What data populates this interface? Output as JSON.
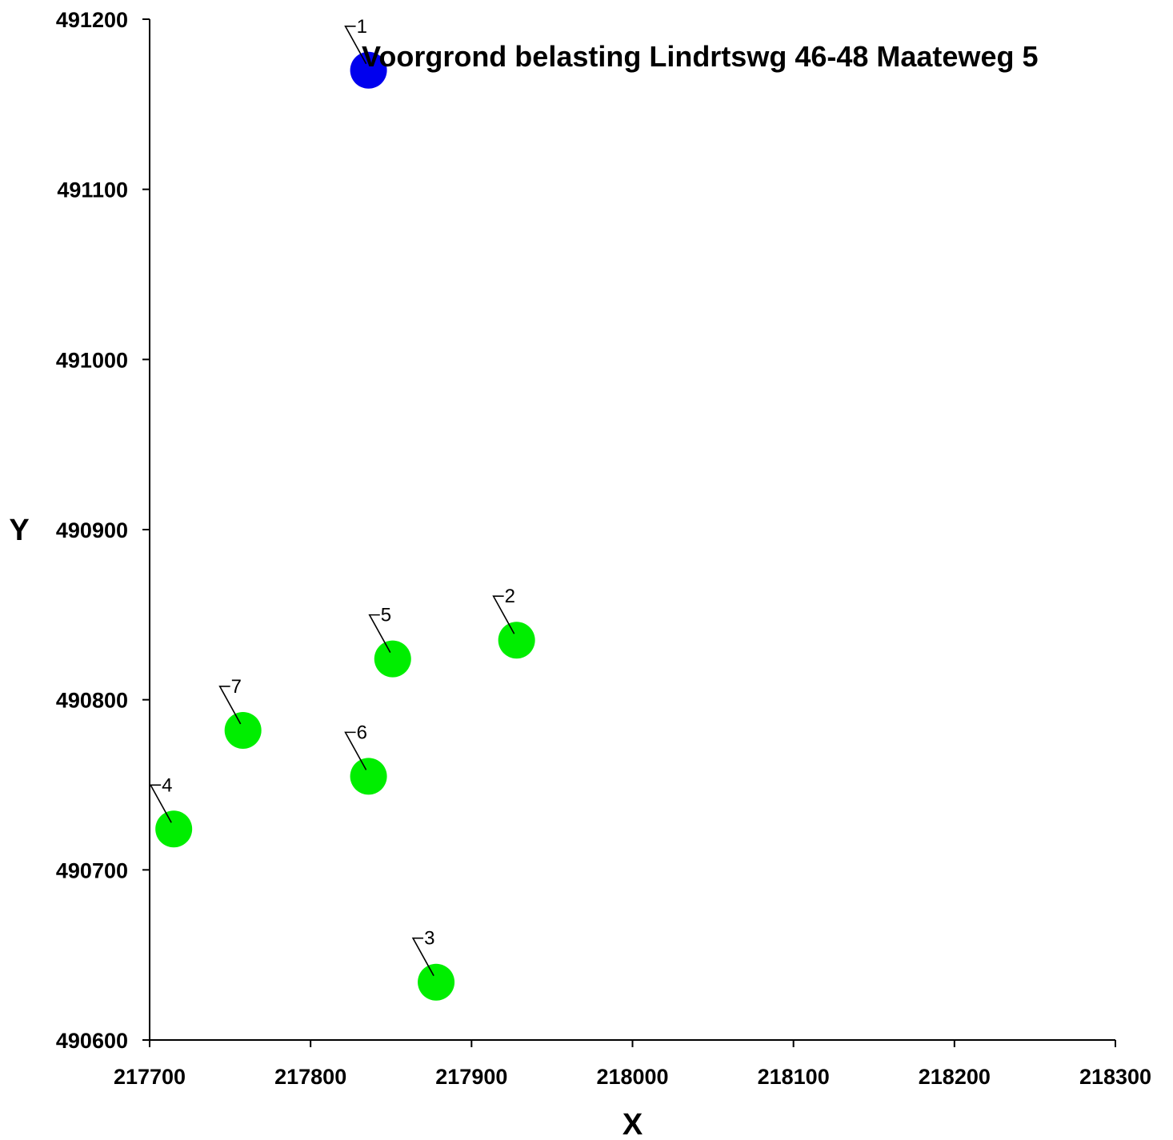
{
  "chart_data": {
    "type": "scatter",
    "title": "Voorgrond belasting Lindrtswg 46-48 Maateweg 5",
    "xlabel": "X",
    "ylabel": "Y",
    "xlim": [
      217700,
      218300
    ],
    "ylim": [
      490600,
      491200
    ],
    "x_ticks": [
      "217700",
      "217800",
      "217900",
      "218000",
      "218100",
      "218200",
      "218300"
    ],
    "y_ticks": [
      "490600",
      "490700",
      "490800",
      "490900",
      "491000",
      "491100",
      "491200"
    ],
    "grid": false,
    "points": [
      {
        "label": "1",
        "x": 217836,
        "y": 491170,
        "color": "#0000ee"
      },
      {
        "label": "2",
        "x": 217928,
        "y": 490835,
        "color": "#00ee00"
      },
      {
        "label": "3",
        "x": 217878,
        "y": 490634,
        "color": "#00ee00"
      },
      {
        "label": "4",
        "x": 217715,
        "y": 490724,
        "color": "#00ee00"
      },
      {
        "label": "5",
        "x": 217851,
        "y": 490824,
        "color": "#00ee00"
      },
      {
        "label": "6",
        "x": 217836,
        "y": 490755,
        "color": "#00ee00"
      },
      {
        "label": "7",
        "x": 217758,
        "y": 490782,
        "color": "#00ee00"
      }
    ]
  }
}
